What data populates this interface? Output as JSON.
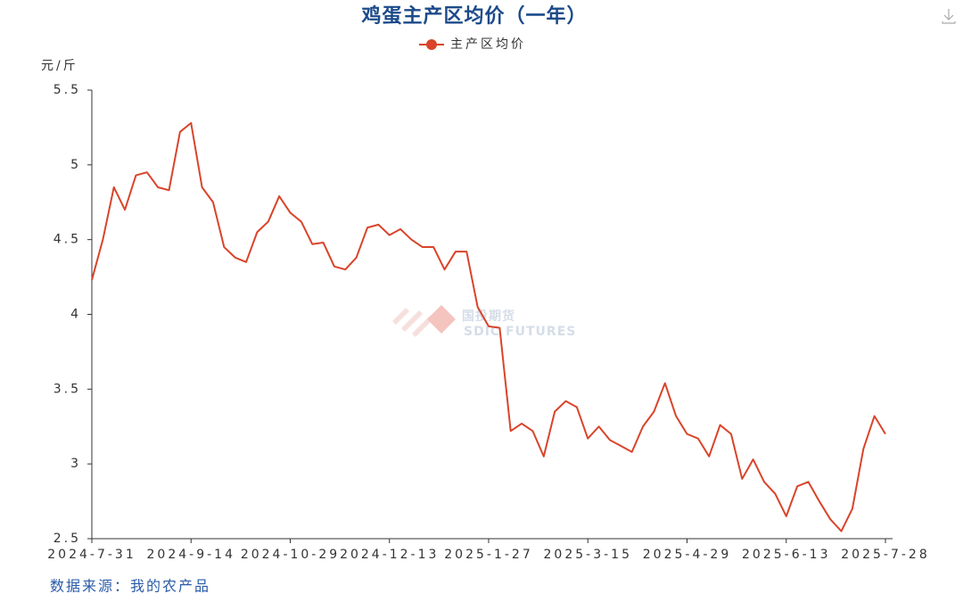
{
  "chart_data": {
    "type": "line",
    "title": "鸡蛋主产区均价（一年）",
    "y_label": "元/斤",
    "source": "数据来源：我的农产品",
    "watermark": "国投期货",
    "watermark_sub": "SDIC FUTURES",
    "categories": [
      "2024-7-31",
      null,
      null,
      null,
      null,
      null,
      null,
      null,
      null,
      "2024-9-14",
      null,
      null,
      null,
      null,
      null,
      null,
      null,
      null,
      "2024-10-29",
      null,
      null,
      null,
      null,
      null,
      null,
      null,
      null,
      "2024-12-13",
      null,
      null,
      null,
      null,
      null,
      null,
      null,
      null,
      "2025-1-27",
      null,
      null,
      null,
      null,
      null,
      null,
      null,
      null,
      "2025-3-15",
      null,
      null,
      null,
      null,
      null,
      null,
      null,
      null,
      "2025-4-29",
      null,
      null,
      null,
      null,
      null,
      null,
      null,
      null,
      "2025-6-13",
      null,
      null,
      null,
      null,
      null,
      null,
      null,
      null,
      "2025-7-28"
    ],
    "series": [
      {
        "name": "主产区均价",
        "color": "#d9442a",
        "values": [
          4.23,
          4.5,
          4.85,
          4.7,
          4.93,
          4.95,
          4.85,
          4.83,
          5.22,
          5.28,
          4.85,
          4.75,
          4.45,
          4.38,
          4.35,
          4.55,
          4.62,
          4.79,
          4.68,
          4.62,
          4.47,
          4.48,
          4.32,
          4.3,
          4.38,
          4.58,
          4.6,
          4.53,
          4.57,
          4.5,
          4.45,
          4.45,
          4.3,
          4.42,
          4.42,
          4.05,
          3.92,
          3.91,
          3.22,
          3.27,
          3.22,
          3.05,
          3.35,
          3.42,
          3.38,
          3.17,
          3.25,
          3.16,
          3.12,
          3.08,
          3.25,
          3.35,
          3.54,
          3.32,
          3.2,
          3.17,
          3.05,
          3.26,
          3.2,
          2.9,
          3.03,
          2.88,
          2.8,
          2.65,
          2.85,
          2.88,
          2.75,
          2.63,
          2.55,
          2.7,
          3.1,
          3.32,
          3.2
        ]
      }
    ],
    "ylim": [
      2.5,
      5.5
    ],
    "yticks": [
      2.5,
      3,
      3.5,
      4,
      4.5,
      5,
      5.5
    ],
    "legend": "top"
  }
}
